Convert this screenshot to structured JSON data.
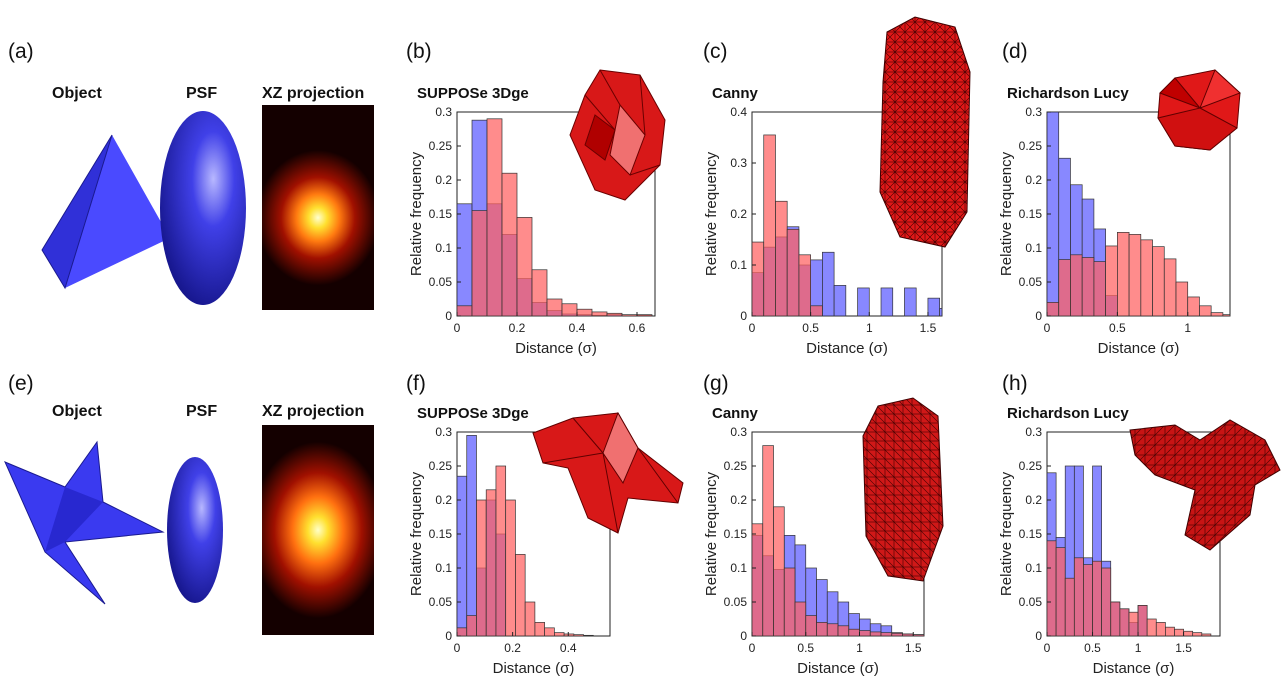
{
  "panel_labels": [
    "(a)",
    "(b)",
    "(c)",
    "(d)",
    "(e)",
    "(f)",
    "(g)",
    "(h)"
  ],
  "sim_titles": {
    "object": "Object",
    "psf": "PSF",
    "xz": "XZ projection"
  },
  "colors": {
    "blue": "#5a5aff",
    "red": "#ff6b6b",
    "overlap": "#9b2f6e",
    "mesh_red": "#e01818",
    "object_blue": "#2a2ad8"
  },
  "icons": [
    "tetrahedron-object",
    "ellipsoid-psf",
    "xz-projection-heatmap",
    "star-object",
    "red-mesh-reconstruction"
  ],
  "chart_data": [
    {
      "id": "b",
      "type": "bar",
      "title": "SUPPOSe 3Dge",
      "xlabel": "Distance (σ)",
      "ylabel": "Relative frequency",
      "xlim": [
        0,
        0.66
      ],
      "ylim": [
        0,
        0.3
      ],
      "bin_start": 0,
      "bin_width": 0.05,
      "xticks": [
        0,
        0.2,
        0.4,
        0.6
      ],
      "xtick_labels": [
        "0",
        "0.2",
        "0.4",
        "0.6"
      ],
      "yticks": [
        0,
        0.05,
        0.1,
        0.15,
        0.2,
        0.25,
        0.3
      ],
      "ytick_labels": [
        "0",
        "0.05",
        "0.1",
        "0.15",
        "0.2",
        "0.25",
        "0.3"
      ],
      "series": [
        {
          "color": "blue",
          "values": [
            0.165,
            0.288,
            0.165,
            0.12,
            0.055,
            0.02,
            0.008,
            0.003,
            0.002,
            0.001,
            0.002,
            0.0,
            0.001
          ]
        },
        {
          "color": "red",
          "values": [
            0.015,
            0.155,
            0.29,
            0.21,
            0.145,
            0.068,
            0.025,
            0.018,
            0.01,
            0.006,
            0.004,
            0.002,
            0.002
          ]
        }
      ]
    },
    {
      "id": "c",
      "type": "bar",
      "title": "Canny",
      "xlabel": "Distance (σ)",
      "ylabel": "Relative frequency",
      "xlim": [
        0,
        1.62
      ],
      "ylim": [
        0,
        0.4
      ],
      "bin_start": 0,
      "bin_width": 0.1,
      "xticks": [
        0,
        0.5,
        1,
        1.5
      ],
      "xtick_labels": [
        "0",
        "0.5",
        "1",
        "1.5"
      ],
      "yticks": [
        0,
        0.1,
        0.2,
        0.3,
        0.4
      ],
      "ytick_labels": [
        "0",
        "0.1",
        "0.2",
        "0.3",
        "0.4"
      ],
      "series": [
        {
          "color": "blue",
          "values": [
            0.085,
            0.135,
            0.155,
            0.175,
            0.1,
            0.11,
            0.125,
            0.06,
            0.0,
            0.055,
            0.0,
            0.055,
            0.0,
            0.055,
            0.0,
            0.035,
            0.015
          ]
        },
        {
          "color": "red",
          "values": [
            0.145,
            0.355,
            0.225,
            0.17,
            0.12,
            0.02,
            0.0,
            0.0,
            0.0,
            0.0,
            0.0,
            0.0,
            0.0,
            0.0,
            0.0,
            0.0,
            0.0
          ]
        }
      ]
    },
    {
      "id": "d",
      "type": "bar",
      "title": "Richardson Lucy",
      "xlabel": "Distance (σ)",
      "ylabel": "Relative frequency",
      "xlim": [
        0,
        1.3
      ],
      "ylim": [
        0,
        0.3
      ],
      "bin_start": 0,
      "bin_width": 0.0833,
      "xticks": [
        0,
        0.5,
        1
      ],
      "xtick_labels": [
        "0",
        "0.5",
        "1"
      ],
      "yticks": [
        0,
        0.05,
        0.1,
        0.15,
        0.2,
        0.25,
        0.3
      ],
      "ytick_labels": [
        "0",
        "0.05",
        "0.1",
        "0.15",
        "0.2",
        "0.25",
        "0.3"
      ],
      "series": [
        {
          "color": "blue",
          "values": [
            0.3,
            0.232,
            0.193,
            0.172,
            0.128,
            0.03,
            0.0,
            0.0,
            0.0,
            0.0,
            0.0,
            0.0,
            0.0,
            0.0,
            0.0,
            0.0
          ]
        },
        {
          "color": "red",
          "values": [
            0.02,
            0.083,
            0.09,
            0.086,
            0.08,
            0.103,
            0.123,
            0.12,
            0.112,
            0.102,
            0.084,
            0.05,
            0.028,
            0.015,
            0.005,
            0.002
          ]
        }
      ]
    },
    {
      "id": "f",
      "type": "bar",
      "title": "SUPPOSe 3Dge",
      "xlabel": "Distance (σ)",
      "ylabel": "Relative frequency",
      "xlim": [
        0,
        0.55
      ],
      "ylim": [
        0,
        0.3
      ],
      "bin_start": 0,
      "bin_width": 0.035,
      "xticks": [
        0,
        0.2,
        0.4
      ],
      "xtick_labels": [
        "0",
        "0.2",
        "0.4"
      ],
      "yticks": [
        0,
        0.05,
        0.1,
        0.15,
        0.2,
        0.25,
        0.3
      ],
      "ytick_labels": [
        "0",
        "0.05",
        "0.1",
        "0.15",
        "0.2",
        "0.25",
        "0.3"
      ],
      "series": [
        {
          "color": "blue",
          "values": [
            0.235,
            0.295,
            0.1,
            0.2,
            0.15,
            0.0,
            0.0,
            0.0,
            0.0,
            0.0,
            0.0,
            0.0,
            0.0,
            0.0,
            0.0
          ]
        },
        {
          "color": "red",
          "values": [
            0.012,
            0.03,
            0.2,
            0.215,
            0.25,
            0.2,
            0.12,
            0.05,
            0.02,
            0.012,
            0.005,
            0.003,
            0.002,
            0.001,
            0.0
          ]
        }
      ]
    },
    {
      "id": "g",
      "type": "bar",
      "title": "Canny",
      "xlabel": "Distance (σ)",
      "ylabel": "Relative frequency",
      "xlim": [
        0,
        1.6
      ],
      "ylim": [
        0,
        0.3
      ],
      "bin_start": 0,
      "bin_width": 0.1,
      "xticks": [
        0,
        0.5,
        1,
        1.5
      ],
      "xtick_labels": [
        "0",
        "0.5",
        "1",
        "1.5"
      ],
      "yticks": [
        0,
        0.05,
        0.1,
        0.15,
        0.2,
        0.25,
        0.3
      ],
      "ytick_labels": [
        "0",
        "0.05",
        "0.1",
        "0.15",
        "0.2",
        "0.25",
        "0.3"
      ],
      "series": [
        {
          "color": "blue",
          "values": [
            0.148,
            0.118,
            0.098,
            0.148,
            0.134,
            0.1,
            0.083,
            0.065,
            0.05,
            0.033,
            0.025,
            0.018,
            0.015,
            0.005,
            0.003,
            0.002
          ]
        },
        {
          "color": "red",
          "values": [
            0.165,
            0.28,
            0.19,
            0.1,
            0.05,
            0.03,
            0.02,
            0.018,
            0.015,
            0.01,
            0.008,
            0.006,
            0.005,
            0.004,
            0.003,
            0.002
          ]
        }
      ]
    },
    {
      "id": "h",
      "type": "bar",
      "title": "Richardson Lucy",
      "xlabel": "Distance (σ)",
      "ylabel": "Relative frequency",
      "xlim": [
        0,
        1.9
      ],
      "ylim": [
        0,
        0.3
      ],
      "bin_start": 0,
      "bin_width": 0.1,
      "xticks": [
        0,
        0.5,
        1,
        1.5
      ],
      "xtick_labels": [
        "0",
        "0.5",
        "1",
        "1.5"
      ],
      "yticks": [
        0,
        0.05,
        0.1,
        0.15,
        0.2,
        0.25,
        0.3
      ],
      "ytick_labels": [
        "0",
        "0.05",
        "0.1",
        "0.15",
        "0.2",
        "0.25",
        "0.3"
      ],
      "series": [
        {
          "color": "blue",
          "values": [
            0.24,
            0.145,
            0.25,
            0.25,
            0.115,
            0.25,
            0.11,
            0.05,
            0.04,
            0.02,
            0.045,
            0.0,
            0.0,
            0.0,
            0.0,
            0.0,
            0.0,
            0.0
          ]
        },
        {
          "color": "red",
          "values": [
            0.14,
            0.13,
            0.085,
            0.115,
            0.105,
            0.11,
            0.1,
            0.05,
            0.04,
            0.035,
            0.045,
            0.025,
            0.02,
            0.013,
            0.01,
            0.007,
            0.005,
            0.003
          ]
        }
      ]
    }
  ]
}
